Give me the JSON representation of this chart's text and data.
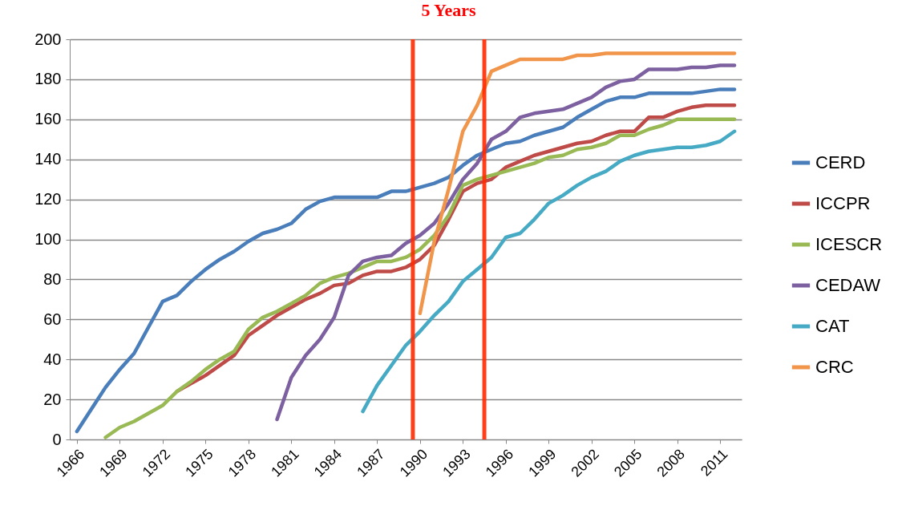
{
  "chart_data": {
    "type": "line",
    "x": [
      1966,
      1967,
      1968,
      1969,
      1970,
      1971,
      1972,
      1973,
      1974,
      1975,
      1976,
      1977,
      1978,
      1979,
      1980,
      1981,
      1982,
      1983,
      1984,
      1985,
      1986,
      1987,
      1988,
      1989,
      1990,
      1991,
      1992,
      1993,
      1994,
      1995,
      1996,
      1997,
      1998,
      1999,
      2000,
      2001,
      2002,
      2003,
      2004,
      2005,
      2006,
      2007,
      2008,
      2009,
      2010,
      2011,
      2012
    ],
    "series": [
      {
        "name": "CERD",
        "color": "#4a7ebb",
        "values": [
          4,
          15,
          26,
          35,
          43,
          56,
          69,
          72,
          79,
          85,
          90,
          94,
          99,
          103,
          105,
          108,
          115,
          119,
          121,
          121,
          121,
          121,
          124,
          124,
          126,
          128,
          131,
          137,
          142,
          145,
          148,
          149,
          152,
          154,
          156,
          161,
          165,
          169,
          171,
          171,
          173,
          173,
          173,
          173,
          174,
          175,
          175
        ]
      },
      {
        "name": "ICCPR",
        "color": "#be4b48",
        "values": [
          null,
          null,
          null,
          null,
          null,
          null,
          null,
          24,
          28,
          32,
          37,
          42,
          52,
          57,
          62,
          66,
          70,
          73,
          77,
          78,
          82,
          84,
          84,
          86,
          90,
          97,
          110,
          124,
          128,
          130,
          136,
          139,
          142,
          144,
          146,
          148,
          149,
          152,
          154,
          154,
          161,
          161,
          164,
          166,
          167,
          167,
          167
        ]
      },
      {
        "name": "ICESCR",
        "color": "#98b954",
        "values": [
          null,
          null,
          1,
          6,
          9,
          13,
          17,
          24,
          29,
          35,
          40,
          44,
          55,
          61,
          64,
          68,
          72,
          78,
          81,
          83,
          86,
          89,
          89,
          91,
          95,
          102,
          112,
          127,
          130,
          132,
          134,
          136,
          138,
          141,
          142,
          145,
          146,
          148,
          152,
          152,
          155,
          157,
          160,
          160,
          160,
          160,
          160
        ]
      },
      {
        "name": "CEDAW",
        "color": "#7d60a0",
        "values": [
          null,
          null,
          null,
          null,
          null,
          null,
          null,
          null,
          null,
          null,
          null,
          null,
          null,
          null,
          10,
          31,
          42,
          50,
          61,
          82,
          89,
          91,
          92,
          98,
          102,
          108,
          118,
          130,
          138,
          150,
          154,
          161,
          163,
          164,
          165,
          168,
          171,
          176,
          179,
          180,
          185,
          185,
          185,
          186,
          186,
          187,
          187
        ]
      },
      {
        "name": "CAT",
        "color": "#46aac5",
        "values": [
          null,
          null,
          null,
          null,
          null,
          null,
          null,
          null,
          null,
          null,
          null,
          null,
          null,
          null,
          null,
          null,
          null,
          null,
          null,
          null,
          14,
          27,
          37,
          47,
          54,
          62,
          69,
          79,
          85,
          91,
          101,
          103,
          110,
          118,
          122,
          127,
          131,
          134,
          139,
          142,
          144,
          145,
          146,
          146,
          147,
          149,
          154
        ]
      },
      {
        "name": "CRC",
        "color": "#f0954a",
        "values": [
          null,
          null,
          null,
          null,
          null,
          null,
          null,
          null,
          null,
          null,
          null,
          null,
          null,
          null,
          null,
          null,
          null,
          null,
          null,
          null,
          null,
          null,
          null,
          null,
          63,
          99,
          125,
          154,
          167,
          184,
          187,
          190,
          190,
          190,
          190,
          192,
          192,
          193,
          193,
          193,
          193,
          193,
          193,
          193,
          193,
          193,
          193
        ]
      }
    ],
    "xlim": [
      1965.5,
      2012.5
    ],
    "xticks": [
      1966,
      1969,
      1972,
      1975,
      1978,
      1981,
      1984,
      1987,
      1990,
      1993,
      1996,
      1999,
      2002,
      2005,
      2008,
      2011
    ],
    "ylim": [
      0,
      200
    ],
    "yticks": [
      0,
      20,
      40,
      60,
      80,
      100,
      120,
      140,
      160,
      180,
      200
    ],
    "grid": "y",
    "legend": "right",
    "line_style": "solid",
    "ref_lines": [
      {
        "axis": "x",
        "value": 1989.5,
        "color": "#ff2a00"
      },
      {
        "axis": "x",
        "value": 1994.5,
        "color": "#ff2a00"
      }
    ],
    "annotations": [
      "5 Years"
    ]
  }
}
